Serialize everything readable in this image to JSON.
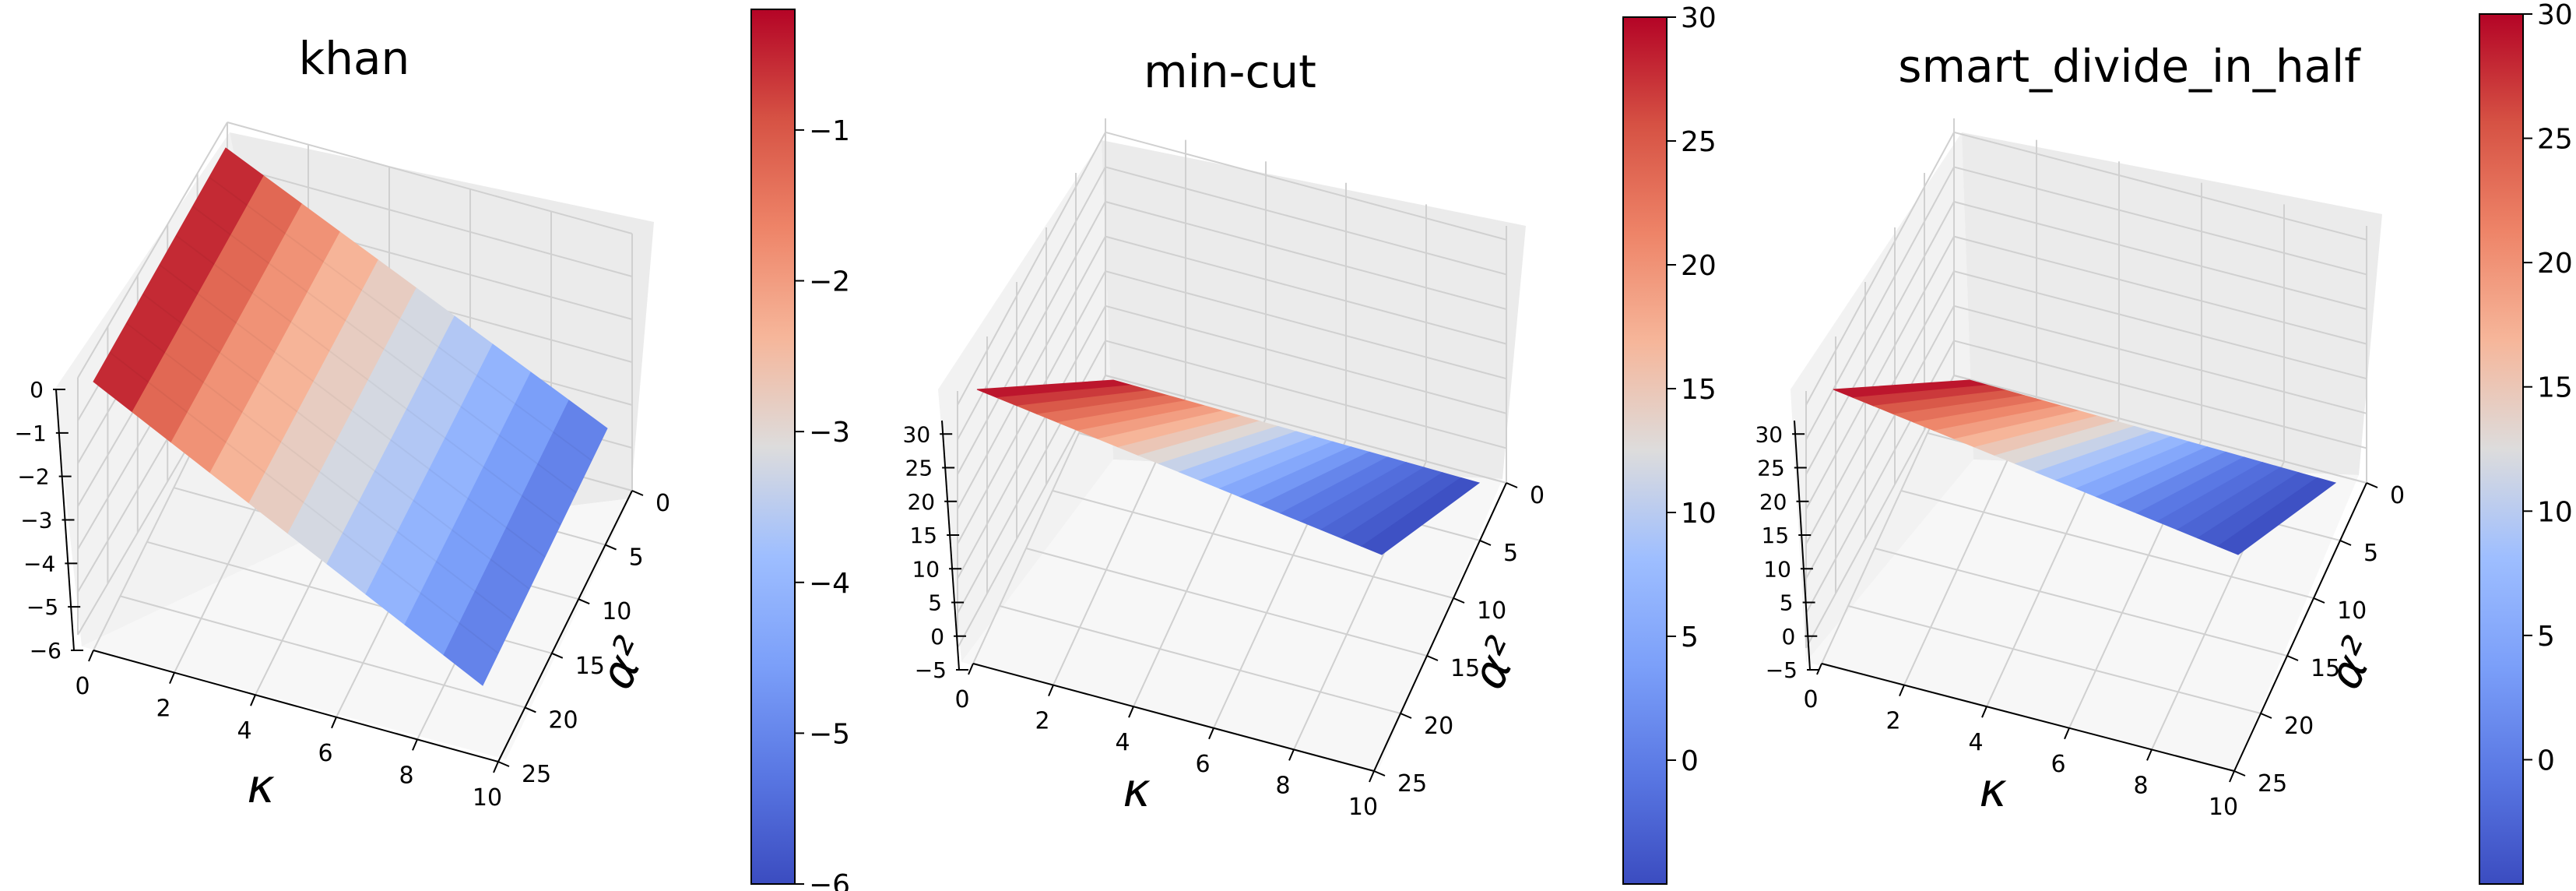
{
  "chart_data": [
    {
      "type": "surface",
      "title": "khan",
      "xlabel": "κ",
      "ylabel": "α²",
      "zlabel": "",
      "x_ticks": [
        0,
        2,
        4,
        6,
        8,
        10
      ],
      "y_ticks": [
        0,
        5,
        10,
        15,
        20,
        25
      ],
      "z_ticks": [
        0,
        -1,
        -2,
        -3,
        -4,
        -5,
        -6
      ],
      "zlim": [
        -6,
        0
      ],
      "xlim": [
        0,
        10
      ],
      "ylim": [
        0,
        25
      ],
      "surface": {
        "kappa": [
          0,
          1,
          2,
          3,
          4,
          5,
          6,
          7,
          8,
          9,
          10
        ],
        "alpha2_range": [
          0,
          25
        ],
        "z_at_kappa": [
          -0.2,
          -0.9,
          -1.6,
          -2.1,
          -2.6,
          -3.0,
          -3.4,
          -3.8,
          -4.3,
          -4.8,
          -5.3
        ]
      },
      "colorbar": {
        "colormap": "coolwarm",
        "min": -6,
        "max": -0.2,
        "ticks": [
          -1,
          -2,
          -3,
          -4,
          -5,
          -6
        ],
        "labels": [
          "−1",
          "−2",
          "−3",
          "−4",
          "−5",
          "−6"
        ]
      }
    },
    {
      "type": "surface",
      "title": "min-cut",
      "xlabel": "κ",
      "ylabel": "α²",
      "zlabel": "",
      "x_ticks": [
        0,
        2,
        4,
        6,
        8,
        10
      ],
      "y_ticks": [
        0,
        5,
        10,
        15,
        20,
        25
      ],
      "z_ticks": [
        30,
        25,
        20,
        15,
        10,
        5,
        0,
        -5
      ],
      "zlim": [
        -5,
        32
      ],
      "xlim": [
        0,
        10
      ],
      "ylim": [
        0,
        25
      ],
      "surface": {
        "kappa": [
          0,
          1,
          2,
          3,
          4,
          5,
          6,
          7,
          8,
          9,
          10
        ],
        "alpha2_range": [
          0,
          25
        ],
        "z_at_alpha2": [
          30,
          28,
          26,
          24,
          22,
          20,
          18,
          16,
          14,
          12,
          10,
          8,
          6,
          4,
          2,
          0,
          -1,
          -2,
          -3,
          -4,
          -5
        ],
        "z_tip": -5
      },
      "colorbar": {
        "colormap": "coolwarm",
        "min": -5,
        "max": 30,
        "ticks": [
          30,
          25,
          20,
          15,
          10,
          5,
          0
        ],
        "labels": [
          "30",
          "25",
          "20",
          "15",
          "10",
          "5",
          "0"
        ]
      }
    },
    {
      "type": "surface",
      "title": "smart_divide_in_half",
      "xlabel": "κ",
      "ylabel": "α²",
      "zlabel": "",
      "x_ticks": [
        0,
        2,
        4,
        6,
        8,
        10
      ],
      "y_ticks": [
        0,
        5,
        10,
        15,
        20,
        25
      ],
      "z_ticks": [
        30,
        25,
        20,
        15,
        10,
        5,
        0,
        -5
      ],
      "zlim": [
        -5,
        32
      ],
      "xlim": [
        0,
        10
      ],
      "ylim": [
        0,
        25
      ],
      "surface": {
        "kappa": [
          0,
          1,
          2,
          3,
          4,
          5,
          6,
          7,
          8,
          9,
          10
        ],
        "alpha2_range": [
          0,
          25
        ],
        "z_at_alpha2": [
          30,
          28,
          26,
          24,
          22,
          20,
          18,
          16,
          14,
          12,
          10,
          8,
          6,
          4,
          2,
          0,
          -1,
          -2,
          -3,
          -4,
          -5
        ],
        "z_tip": -5
      },
      "colorbar": {
        "colormap": "coolwarm",
        "min": -5,
        "max": 30,
        "ticks": [
          30,
          25,
          20,
          15,
          10,
          5,
          0
        ],
        "labels": [
          "30",
          "25",
          "20",
          "15",
          "10",
          "5",
          "0"
        ]
      }
    }
  ]
}
